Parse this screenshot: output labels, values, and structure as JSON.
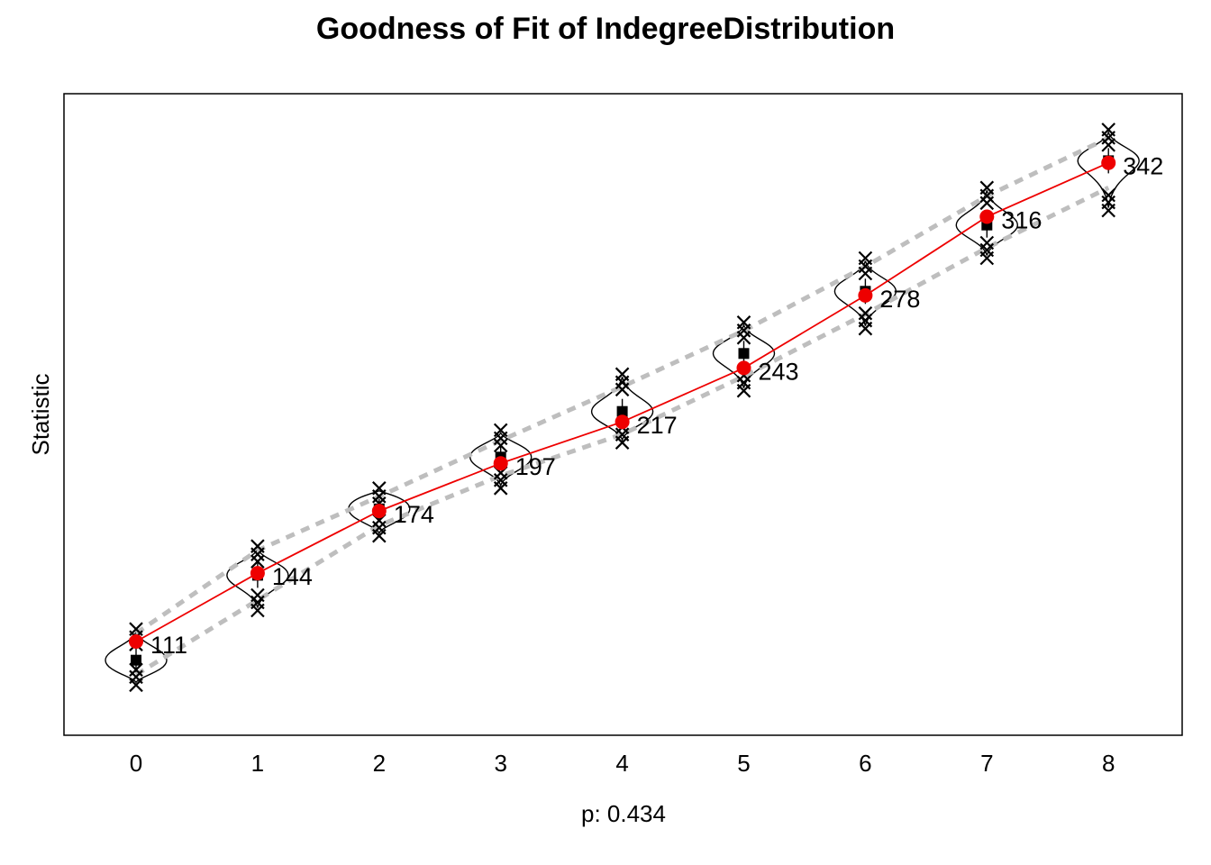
{
  "chart_data": {
    "type": "line",
    "title": "Goodness of Fit of IndegreeDistribution",
    "xlabel": "p: 0.434",
    "ylabel": "Statistic",
    "x": [
      0,
      1,
      2,
      3,
      4,
      5,
      6,
      7,
      8
    ],
    "xlim": [
      -0.6,
      8.6
    ],
    "ylim": [
      80,
      365
    ],
    "yticks_shown": false,
    "grid": false,
    "legend": "none",
    "observed": {
      "values": [
        111,
        144,
        174,
        197,
        217,
        243,
        278,
        316,
        342
      ],
      "labels": [
        "111",
        "144",
        "174",
        "197",
        "217",
        "243",
        "278",
        "316",
        "342"
      ],
      "color": "#ee0000"
    },
    "simulated": {
      "mean": [
        102,
        143,
        175,
        200,
        222,
        250,
        280,
        312,
        343
      ],
      "band_upper": [
        115,
        155,
        181,
        208,
        234,
        261,
        292,
        326,
        354
      ],
      "band_lower": [
        95,
        131,
        167,
        191,
        211,
        239,
        269,
        301,
        330
      ],
      "max": [
        117,
        157,
        185,
        213,
        240,
        265,
        296,
        330,
        358
      ],
      "min": [
        90,
        126,
        162,
        185,
        207,
        232,
        262,
        296,
        319
      ],
      "band_color": "#bebebe",
      "marker_color": "#000000"
    }
  }
}
